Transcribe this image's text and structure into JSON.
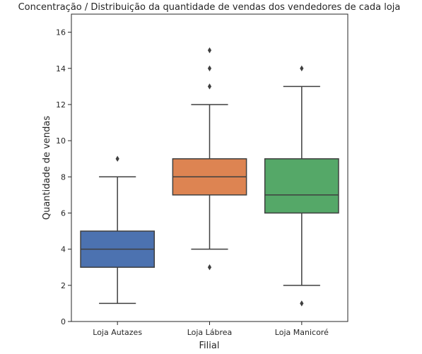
{
  "chart_data": {
    "type": "boxplot",
    "title": "Concentração / Distribuição da quantidade de vendas dos vendedores de cada loja",
    "xlabel": "Filial",
    "ylabel": "Quantidade de vendas",
    "ylim": [
      0,
      17
    ],
    "yticks": [
      0,
      2,
      4,
      6,
      8,
      10,
      12,
      14,
      16
    ],
    "grid": false,
    "categories": [
      "Loja Autazes",
      "Loja Lábrea",
      "Loja Manicoré"
    ],
    "boxes": [
      {
        "category": "Loja Autazes",
        "whisker_low": 1,
        "q1": 3,
        "median": 4,
        "q3": 5,
        "whisker_high": 8,
        "outliers": [
          9
        ],
        "color": "#4c72b0"
      },
      {
        "category": "Loja Lábrea",
        "whisker_low": 4,
        "q1": 7,
        "median": 8,
        "q3": 9,
        "whisker_high": 12,
        "outliers": [
          3,
          13,
          14,
          15
        ],
        "color": "#dd8452"
      },
      {
        "category": "Loja Manicoré",
        "whisker_low": 2,
        "q1": 6,
        "median": 7,
        "q3": 9,
        "whisker_high": 13,
        "outliers": [
          1,
          14
        ],
        "color": "#55a868"
      }
    ]
  }
}
